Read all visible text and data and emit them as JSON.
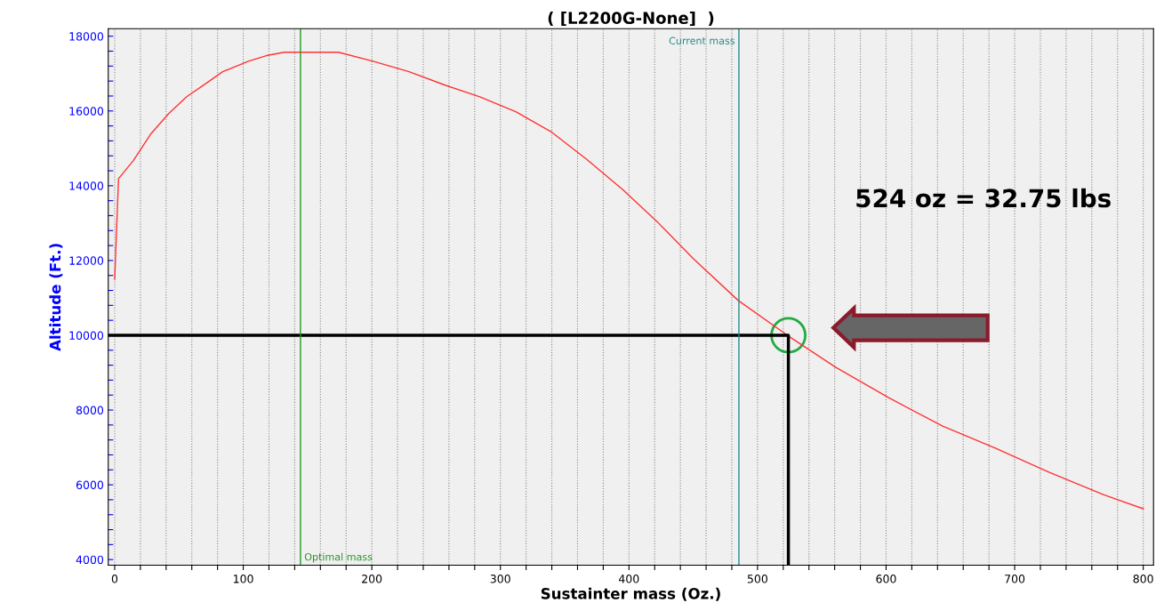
{
  "chart_data": {
    "type": "line",
    "title": "( [L2200G-None]  )",
    "xlabel": "Sustainter mass (Oz.)",
    "ylabel": "Altitude (Ft.)",
    "xlim": [
      -5,
      808
    ],
    "ylim": [
      3850,
      18200
    ],
    "xticks": [
      0,
      {
        "value": 20,
        "label": null
      },
      {
        "value": 40,
        "label": null
      },
      {
        "value": 60,
        "label": null
      },
      {
        "value": 80,
        "label": null
      },
      100,
      {
        "value": 120,
        "label": null
      },
      {
        "value": 140,
        "label": null
      },
      {
        "value": 160,
        "label": null
      },
      {
        "value": 180,
        "label": null
      },
      200,
      {
        "value": 220,
        "label": null
      },
      {
        "value": 240,
        "label": null
      },
      {
        "value": 260,
        "label": null
      },
      {
        "value": 280,
        "label": null
      },
      300,
      {
        "value": 320,
        "label": null
      },
      {
        "value": 340,
        "label": null
      },
      {
        "value": 360,
        "label": null
      },
      {
        "value": 380,
        "label": null
      },
      400,
      {
        "value": 420,
        "label": null
      },
      {
        "value": 440,
        "label": null
      },
      {
        "value": 460,
        "label": null
      },
      {
        "value": 480,
        "label": null
      },
      500,
      {
        "value": 520,
        "label": null
      },
      {
        "value": 540,
        "label": null
      },
      {
        "value": 560,
        "label": null
      },
      {
        "value": 580,
        "label": null
      },
      600,
      {
        "value": 620,
        "label": null
      },
      {
        "value": 640,
        "label": null
      },
      {
        "value": 660,
        "label": null
      },
      {
        "value": 680,
        "label": null
      },
      700,
      {
        "value": 720,
        "label": null
      },
      {
        "value": 740,
        "label": null
      },
      {
        "value": 760,
        "label": null
      },
      {
        "value": 780,
        "label": null
      },
      800
    ],
    "yticks": [
      4000,
      {
        "value": 4400,
        "label": null
      },
      {
        "value": 4800,
        "label": null
      },
      {
        "value": 5200,
        "label": null
      },
      {
        "value": 5600,
        "label": null
      },
      6000,
      {
        "value": 6400,
        "label": null
      },
      {
        "value": 6800,
        "label": null
      },
      {
        "value": 7200,
        "label": null
      },
      {
        "value": 7600,
        "label": null
      },
      8000,
      {
        "value": 8400,
        "label": null
      },
      {
        "value": 8800,
        "label": null
      },
      {
        "value": 9200,
        "label": null
      },
      {
        "value": 9600,
        "label": null
      },
      10000,
      {
        "value": 10400,
        "label": null
      },
      {
        "value": 10800,
        "label": null
      },
      {
        "value": 11200,
        "label": null
      },
      {
        "value": 11600,
        "label": null
      },
      12000,
      {
        "value": 12400,
        "label": null
      },
      {
        "value": 12800,
        "label": null
      },
      {
        "value": 13200,
        "label": null
      },
      {
        "value": 13600,
        "label": null
      },
      14000,
      {
        "value": 14400,
        "label": null
      },
      {
        "value": 14800,
        "label": null
      },
      {
        "value": 15200,
        "label": null
      },
      {
        "value": 15600,
        "label": null
      },
      16000,
      {
        "value": 16400,
        "label": null
      },
      {
        "value": 16800,
        "label": null
      },
      {
        "value": 17200,
        "label": null
      },
      {
        "value": 17600,
        "label": null
      },
      18000
    ],
    "grid": "x",
    "line_style": "solid",
    "marker": "none",
    "series": [
      {
        "color": "#ff3333",
        "x": [
          0,
          3,
          14.5,
          28,
          42,
          56,
          70,
          84,
          104,
          118,
          132,
          174,
          201,
          229,
          257,
          284,
          312,
          340,
          367,
          395,
          423,
          450,
          485,
          524,
          561,
          602,
          644,
          685,
          727,
          769,
          800
        ],
        "values": [
          11500,
          14190,
          14670,
          15380,
          15930,
          16380,
          16710,
          17050,
          17330,
          17480,
          17570,
          17570,
          17330,
          17050,
          16690,
          16380,
          15980,
          15430,
          14710,
          13900,
          13000,
          12050,
          10930,
          9980,
          9140,
          8330,
          7570,
          6980,
          6330,
          5740,
          5360
        ]
      },
      {
        "color": "#000000",
        "x": [
          -5,
          524,
          524
        ],
        "values": [
          10000,
          10000,
          3850
        ]
      }
    ],
    "ref_lines": [
      {
        "axis": "x",
        "value": 144.5,
        "label": "Optimal mass",
        "color": "#229922"
      },
      {
        "axis": "x",
        "value": 485.5,
        "label": "Current mass",
        "color": "#2a8a8a"
      }
    ],
    "annotations": [
      "524 oz = 32.75 lbs"
    ]
  }
}
